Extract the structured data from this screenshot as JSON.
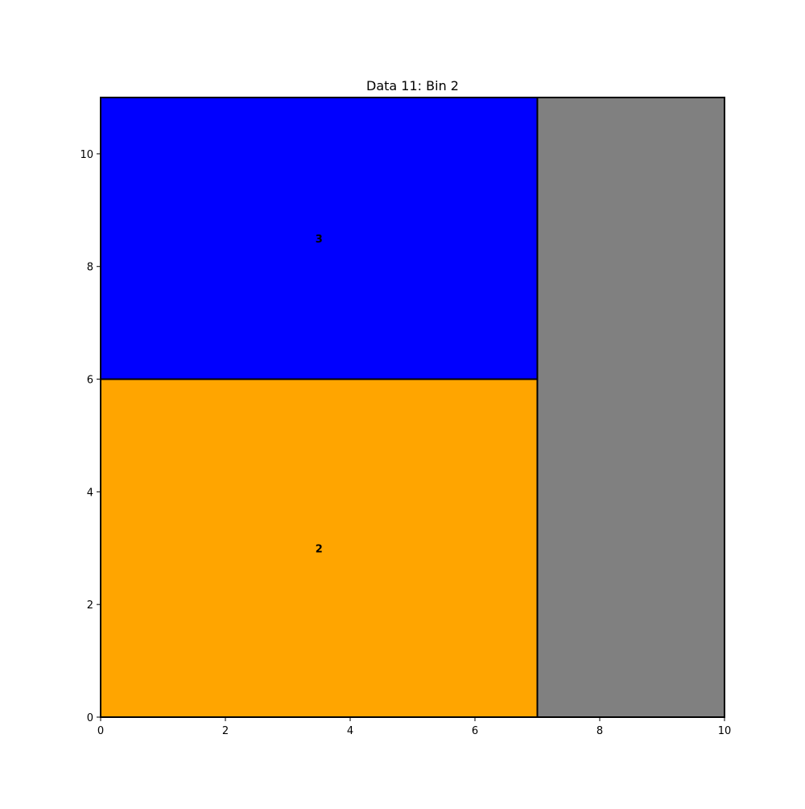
{
  "chart_data": {
    "type": "rectangle-packing",
    "title": "Data 11: Bin 2",
    "xlabel": "",
    "ylabel": "",
    "xlim": [
      0,
      10
    ],
    "ylim": [
      0,
      11
    ],
    "xticks": [
      0,
      2,
      4,
      6,
      8,
      10
    ],
    "yticks": [
      0,
      2,
      4,
      6,
      8,
      10
    ],
    "grid": false,
    "legend": "none",
    "bin": {
      "width": 10,
      "height": 11,
      "fill": "#808080"
    },
    "items": [
      {
        "label": "2",
        "x": 0,
        "y": 0,
        "width": 7,
        "height": 6,
        "color": "#FFA500"
      },
      {
        "label": "3",
        "x": 0,
        "y": 6,
        "width": 7,
        "height": 5,
        "color": "#0000FF"
      }
    ]
  }
}
